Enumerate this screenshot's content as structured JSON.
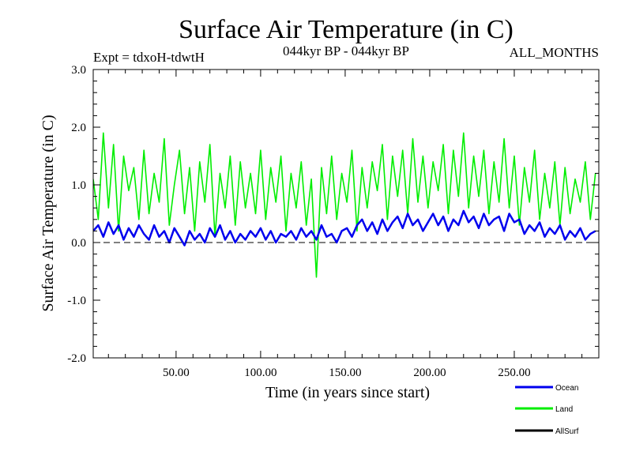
{
  "chart_data": {
    "type": "line",
    "title": "Surface Air Temperature (in C)",
    "subtitle_left": "Expt = tdxoH-tdwtH",
    "subtitle_center": "044kyr BP - 044kyr BP",
    "subtitle_right": "ALL_MONTHS",
    "xlabel": "Time (in years since start)",
    "ylabel": "Surface Air Temperature (in C)",
    "xlim": [
      1,
      300
    ],
    "ylim": [
      -2.0,
      3.0
    ],
    "x_ticks": [
      {
        "value": 50,
        "label": "50.00"
      },
      {
        "value": 100,
        "label": "100.00"
      },
      {
        "value": 150,
        "label": "150.00"
      },
      {
        "value": 200,
        "label": "200.00"
      },
      {
        "value": 250,
        "label": "250.00"
      }
    ],
    "y_ticks": [
      {
        "value": 3.0,
        "label": "3.0"
      },
      {
        "value": 2.0,
        "label": "2.0"
      },
      {
        "value": 1.0,
        "label": "1.0"
      },
      {
        "value": 0.0,
        "label": "0.0"
      },
      {
        "value": -1.0,
        "label": "-1.0"
      },
      {
        "value": -2.0,
        "label": "-2.0"
      }
    ],
    "zero_line": true,
    "grid": false,
    "legend_position": "bottom-right",
    "series": [
      {
        "name": "Land",
        "color": "#00ee00",
        "x": [
          1,
          4,
          7,
          10,
          13,
          16,
          19,
          22,
          25,
          28,
          31,
          34,
          37,
          40,
          43,
          46,
          49,
          52,
          55,
          58,
          61,
          64,
          67,
          70,
          73,
          76,
          79,
          82,
          85,
          88,
          91,
          94,
          97,
          100,
          103,
          106,
          109,
          112,
          115,
          118,
          121,
          124,
          127,
          130,
          133,
          136,
          139,
          142,
          145,
          148,
          151,
          154,
          157,
          160,
          163,
          166,
          169,
          172,
          175,
          178,
          181,
          184,
          187,
          190,
          193,
          196,
          199,
          202,
          205,
          208,
          211,
          214,
          217,
          220,
          223,
          226,
          229,
          232,
          235,
          238,
          241,
          244,
          247,
          250,
          253,
          256,
          259,
          262,
          265,
          268,
          271,
          274,
          277,
          280,
          283,
          286,
          289,
          292,
          295,
          298
        ],
        "values": [
          1.1,
          0.4,
          1.9,
          0.6,
          1.7,
          0.2,
          1.5,
          0.9,
          1.3,
          0.4,
          1.6,
          0.5,
          1.2,
          0.7,
          1.8,
          0.3,
          1.0,
          1.6,
          0.5,
          1.3,
          0.2,
          1.4,
          0.7,
          1.7,
          0.1,
          1.2,
          0.6,
          1.5,
          0.3,
          1.4,
          0.6,
          1.2,
          0.5,
          1.6,
          0.4,
          1.3,
          0.7,
          1.5,
          0.2,
          1.2,
          0.6,
          1.4,
          0.3,
          1.1,
          -0.6,
          1.3,
          0.5,
          1.5,
          0.4,
          1.2,
          0.7,
          1.6,
          0.2,
          1.3,
          0.6,
          1.4,
          0.9,
          1.7,
          0.4,
          1.5,
          0.8,
          1.6,
          0.5,
          1.8,
          0.7,
          1.5,
          0.6,
          1.4,
          0.9,
          1.7,
          0.5,
          1.6,
          0.8,
          1.9,
          0.6,
          1.5,
          0.8,
          1.6,
          0.5,
          1.4,
          0.7,
          1.8,
          0.6,
          1.5,
          0.3,
          1.3,
          0.7,
          1.6,
          0.4,
          1.2,
          0.6,
          1.4,
          0.3,
          1.3,
          0.5,
          1.1,
          0.7,
          1.4,
          0.4,
          1.2
        ]
      },
      {
        "name": "Ocean",
        "color": "#0000ee",
        "x": [
          1,
          4,
          7,
          10,
          13,
          16,
          19,
          22,
          25,
          28,
          31,
          34,
          37,
          40,
          43,
          46,
          49,
          52,
          55,
          58,
          61,
          64,
          67,
          70,
          73,
          76,
          79,
          82,
          85,
          88,
          91,
          94,
          97,
          100,
          103,
          106,
          109,
          112,
          115,
          118,
          121,
          124,
          127,
          130,
          133,
          136,
          139,
          142,
          145,
          148,
          151,
          154,
          157,
          160,
          163,
          166,
          169,
          172,
          175,
          178,
          181,
          184,
          187,
          190,
          193,
          196,
          199,
          202,
          205,
          208,
          211,
          214,
          217,
          220,
          223,
          226,
          229,
          232,
          235,
          238,
          241,
          244,
          247,
          250,
          253,
          256,
          259,
          262,
          265,
          268,
          271,
          274,
          277,
          280,
          283,
          286,
          289,
          292,
          295,
          298
        ],
        "values": [
          0.2,
          0.3,
          0.1,
          0.35,
          0.15,
          0.3,
          0.05,
          0.25,
          0.1,
          0.3,
          0.15,
          0.05,
          0.3,
          0.1,
          0.2,
          0.0,
          0.25,
          0.1,
          -0.05,
          0.2,
          0.05,
          0.15,
          0.0,
          0.25,
          0.1,
          0.3,
          0.05,
          0.2,
          0.0,
          0.15,
          0.05,
          0.2,
          0.1,
          0.25,
          0.05,
          0.2,
          0.0,
          0.15,
          0.1,
          0.2,
          0.05,
          0.25,
          0.1,
          0.2,
          0.05,
          0.3,
          0.1,
          0.15,
          0.0,
          0.2,
          0.25,
          0.1,
          0.3,
          0.4,
          0.2,
          0.35,
          0.15,
          0.4,
          0.2,
          0.35,
          0.45,
          0.25,
          0.5,
          0.3,
          0.4,
          0.2,
          0.35,
          0.5,
          0.3,
          0.45,
          0.2,
          0.4,
          0.3,
          0.55,
          0.35,
          0.45,
          0.25,
          0.5,
          0.3,
          0.4,
          0.45,
          0.2,
          0.5,
          0.35,
          0.4,
          0.15,
          0.3,
          0.2,
          0.35,
          0.1,
          0.25,
          0.15,
          0.3,
          0.05,
          0.2,
          0.1,
          0.25,
          0.05,
          0.15,
          0.2
        ]
      },
      {
        "name": "AllSurf",
        "color": "#000000",
        "x": [],
        "values": []
      }
    ]
  },
  "legend": [
    {
      "name": "Ocean",
      "color": "#0000ee"
    },
    {
      "name": "Land",
      "color": "#00ee00"
    },
    {
      "name": "AllSurf",
      "color": "#000000"
    }
  ]
}
